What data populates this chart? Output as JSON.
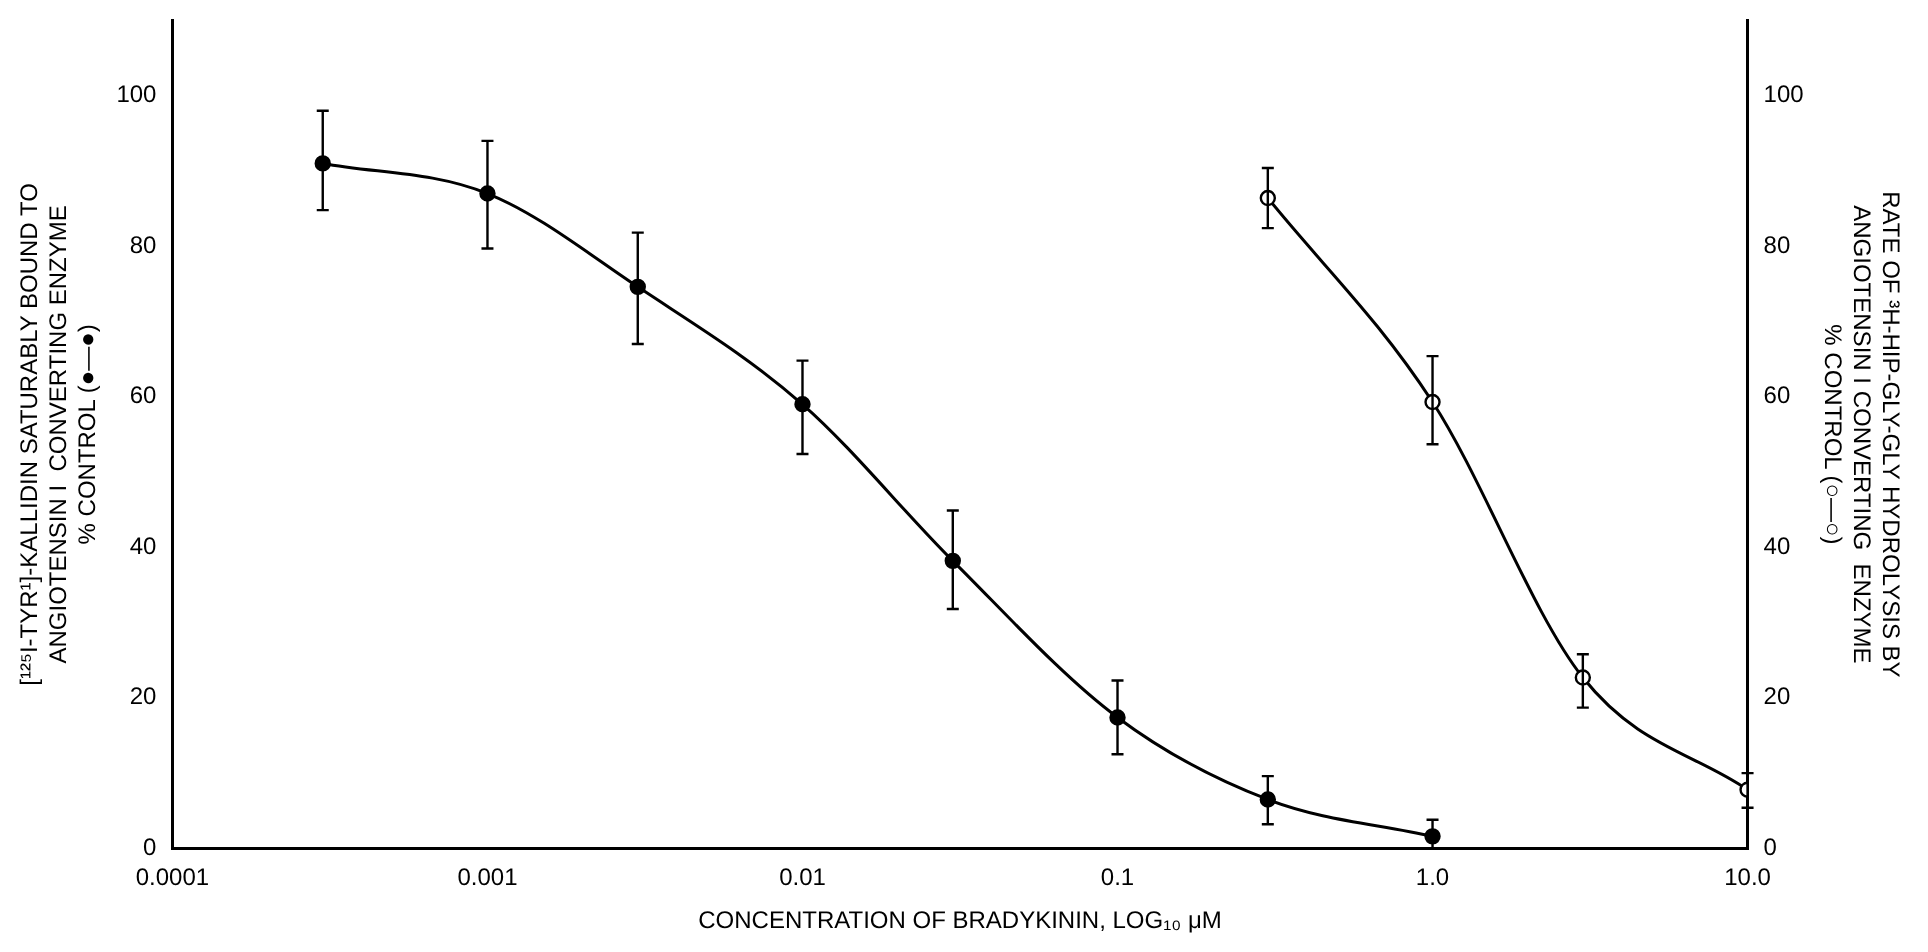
{
  "chart_data": {
    "type": "line",
    "xlabel": "CONCENTRATION OF BRADYKININ, LOG₁₀ μM",
    "ylabel": "[¹²⁵I-TYR¹]-KALLIDIN SATURABLY BOUND TO\nANGIOTENSIN I  CONVERTING ENZYME\n% CONTROL (●—●)",
    "y2label": "RATE OF ³H-HIP-GLY-GLY HYDROLYSIS BY\nANGIOTENSIN I CONVERTING  ENZYME\n% CONTROL (○—○)",
    "log": "x",
    "xlim": [
      0.0001,
      10
    ],
    "xticks": [
      0.0001,
      0.001,
      0.01,
      0.1,
      {
        "value": 1,
        "label": "1.0"
      },
      {
        "value": 10,
        "label": "10.0"
      }
    ],
    "ylim": [
      0,
      110
    ],
    "yticks": [
      0,
      20,
      40,
      60,
      80,
      100
    ],
    "y2lim": [
      0,
      110
    ],
    "y2ticks": [
      0,
      20,
      40,
      60,
      80,
      100
    ],
    "grid": false,
    "legend": false,
    "marker": "circle",
    "line_style": "solid",
    "series": [
      {
        "color": "#000000",
        "x": [
          0.0003,
          0.001,
          0.003,
          0.01,
          0.03,
          0.1,
          0.3,
          1
        ],
        "values": [
          91,
          87,
          74.6,
          59,
          38.2,
          17.4,
          6.5,
          1.6
        ],
        "errors": [
          [
            84.8,
            98
          ],
          [
            79.7,
            94
          ],
          [
            67,
            81.8
          ],
          [
            52.4,
            64.8
          ],
          [
            31.8,
            44.9
          ],
          [
            12.5,
            22.3
          ],
          [
            3.2,
            9.6
          ],
          [
            0,
            3.8
          ]
        ]
      },
      {
        "color": "#000000",
        "axis": "y2",
        "x": [
          0.3,
          1,
          3,
          10
        ],
        "values": [
          86.4,
          59.3,
          22.7,
          7.8
        ],
        "errors": [
          [
            82.4,
            90.4
          ],
          [
            53.7,
            65.4
          ],
          [
            18.7,
            25.8
          ],
          [
            5.4,
            10
          ]
        ]
      }
    ]
  }
}
